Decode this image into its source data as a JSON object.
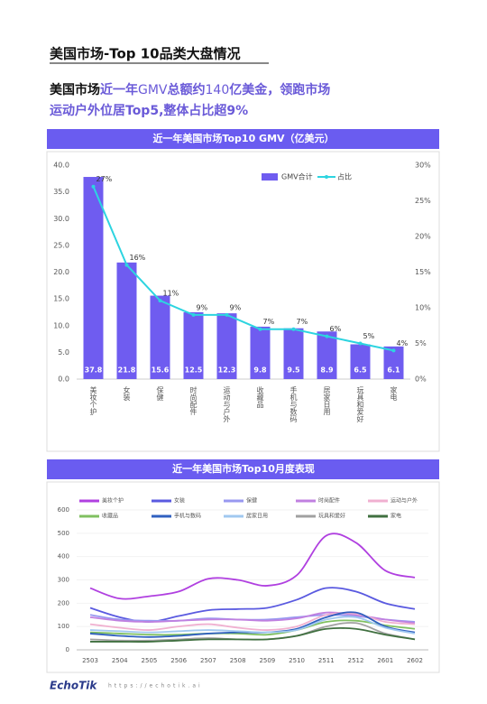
{
  "header": {
    "title": "美国市场-Top 10品类大盘情况"
  },
  "headline": [
    [
      "美国市场",
      "近一年",
      "GMV",
      "总额约",
      "140",
      "亿美金，领跑市场"
    ],
    [
      "运动户外位居",
      "Top5,",
      "整体占比超",
      "9%"
    ]
  ],
  "chart_data": [
    {
      "type": "bar",
      "title": "近一年美国市场Top10 GMV（亿美元）",
      "categories": [
        "美妆个护",
        "女装",
        "保健",
        "时尚配件",
        "运动与户外",
        "收藏品",
        "手机与数码",
        "居家日用",
        "玩具和爱好",
        "家电"
      ],
      "series": [
        {
          "name": "GMV合计",
          "color": "#6f5cf0",
          "values": [
            37.8,
            21.8,
            15.6,
            12.5,
            12.3,
            9.8,
            9.5,
            8.9,
            6.5,
            6.1
          ]
        },
        {
          "name": "占比",
          "type": "line",
          "axis": "y2",
          "color": "#2dd4e0",
          "values": [
            27,
            16,
            11,
            9,
            9,
            7,
            7,
            6,
            5,
            4
          ],
          "value_labels": [
            "27%",
            "16%",
            "11%",
            "9%",
            "9%",
            "7%",
            "7%",
            "6%",
            "5%",
            "4%"
          ]
        }
      ],
      "ylim": [
        0,
        40
      ],
      "yticks": [
        {
          "value": 0,
          "label": "0.0"
        },
        {
          "value": 5,
          "label": "5.0"
        },
        {
          "value": 10,
          "label": "10.0"
        },
        {
          "value": 15,
          "label": "15.0"
        },
        {
          "value": 20,
          "label": "20.0"
        },
        {
          "value": 25,
          "label": "25.0"
        },
        {
          "value": 30,
          "label": "30.0"
        },
        {
          "value": 35,
          "label": "35.0"
        },
        {
          "value": 40,
          "label": "40.0"
        }
      ],
      "y2lim": [
        0,
        30
      ],
      "y2ticks": [
        {
          "value": 0,
          "label": "0%"
        },
        {
          "value": 5,
          "label": "5%"
        },
        {
          "value": 10,
          "label": "10%"
        },
        {
          "value": 15,
          "label": "15%"
        },
        {
          "value": 20,
          "label": "20%"
        },
        {
          "value": 25,
          "label": "25%"
        },
        {
          "value": 30,
          "label": "30%"
        }
      ]
    },
    {
      "type": "line",
      "title": "近一年美国市场Top10月度表现",
      "categories": [
        "2503",
        "2504",
        "2505",
        "2506",
        "2507",
        "2508",
        "2509",
        "2510",
        "2511",
        "2512",
        "2601",
        "2602"
      ],
      "ylim": [
        0,
        600
      ],
      "yticks": [
        0,
        100,
        200,
        300,
        400,
        500,
        600
      ],
      "series": [
        {
          "name": "美妆个护",
          "color": "#b040e0",
          "values": [
            265,
            220,
            230,
            250,
            305,
            300,
            275,
            320,
            490,
            460,
            340,
            310
          ]
        },
        {
          "name": "女装",
          "color": "#5a5ae0",
          "values": [
            180,
            140,
            120,
            145,
            170,
            175,
            180,
            215,
            265,
            250,
            200,
            175
          ]
        },
        {
          "name": "保健",
          "color": "#9898f0",
          "values": [
            150,
            130,
            125,
            125,
            135,
            130,
            130,
            140,
            150,
            145,
            130,
            120
          ]
        },
        {
          "name": "时尚配件",
          "color": "#c080e0",
          "values": [
            140,
            125,
            120,
            125,
            130,
            130,
            125,
            135,
            160,
            150,
            130,
            115
          ]
        },
        {
          "name": "运动与户外",
          "color": "#f0b0d0",
          "values": [
            110,
            95,
            85,
            100,
            110,
            95,
            85,
            100,
            150,
            155,
            120,
            110
          ]
        },
        {
          "name": "收藏品",
          "color": "#80c060",
          "values": [
            75,
            70,
            65,
            65,
            70,
            70,
            65,
            85,
            120,
            125,
            105,
            90
          ]
        },
        {
          "name": "手机与数码",
          "color": "#3060c0",
          "values": [
            70,
            60,
            55,
            60,
            70,
            75,
            75,
            90,
            140,
            160,
            100,
            75
          ]
        },
        {
          "name": "居家日用",
          "color": "#a0c8f0",
          "values": [
            85,
            80,
            75,
            80,
            85,
            80,
            75,
            85,
            130,
            140,
            95,
            70
          ]
        },
        {
          "name": "玩具和爱好",
          "color": "#a0a0a0",
          "values": [
            45,
            40,
            40,
            45,
            50,
            45,
            45,
            60,
            100,
            115,
            70,
            45
          ]
        },
        {
          "name": "家电",
          "color": "#407040",
          "values": [
            35,
            35,
            35,
            40,
            45,
            45,
            45,
            60,
            90,
            90,
            65,
            45
          ]
        }
      ]
    }
  ],
  "footer": {
    "logo": "EchoTik",
    "url": "https://echotik.ai"
  }
}
